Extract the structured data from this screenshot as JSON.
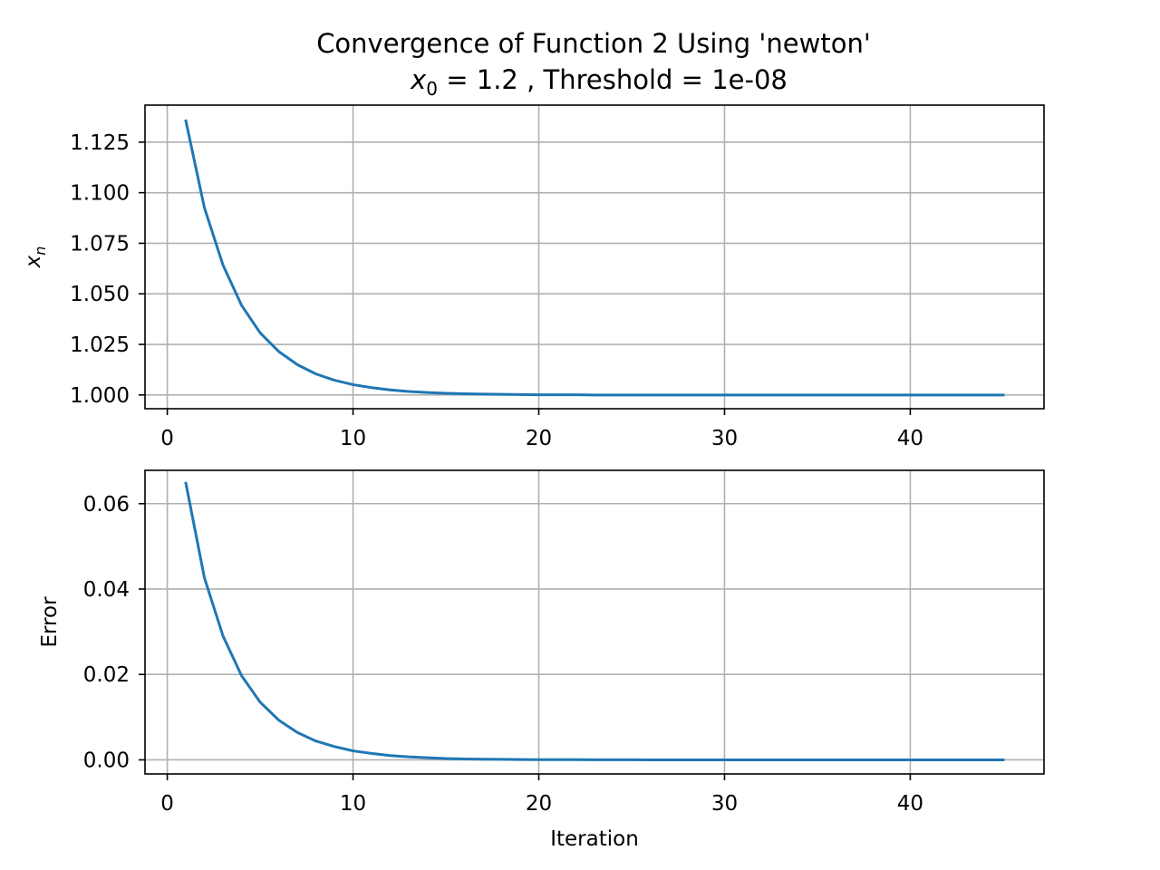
{
  "figure": {
    "title_line1": "Convergence of Function 2 Using 'newton'",
    "title_line2_x": "x",
    "title_line2_sub": "0",
    "title_line2_rest": " = 1.2 , Threshold = 1e-08"
  },
  "colors": {
    "series": "#1f77b4",
    "grid": "#b0b0b0",
    "frame": "#000000"
  },
  "chart_data": [
    {
      "type": "line",
      "title": "Convergence of Function 2 Using 'newton' x_0 = 1.2 , Threshold = 1e-08",
      "xlabel": "",
      "ylabel_main": "x",
      "ylabel_sub": "n",
      "xlim": [
        -1.2,
        47.2
      ],
      "ylim": [
        0.9932,
        1.1433
      ],
      "xticks": [
        0,
        10,
        20,
        30,
        40
      ],
      "xtick_labels": [
        "0",
        "10",
        "20",
        "30",
        "40"
      ],
      "yticks": [
        1.0,
        1.025,
        1.05,
        1.075,
        1.1,
        1.125
      ],
      "ytick_labels": [
        "1.000",
        "1.025",
        "1.050",
        "1.075",
        "1.100",
        "1.125"
      ],
      "grid": true,
      "series": [
        {
          "x": [
            1,
            2,
            3,
            4,
            5,
            6,
            7,
            8,
            9,
            10,
            11,
            12,
            13,
            14,
            15,
            16,
            17,
            18,
            19,
            20,
            21,
            22,
            23,
            24,
            25,
            26,
            27,
            28,
            29,
            30,
            31,
            32,
            33,
            34,
            35,
            36,
            37,
            38,
            39,
            40,
            41,
            42,
            43,
            44,
            45
          ],
          "values": [
            1.1355,
            1.0925,
            1.0642,
            1.0443,
            1.0307,
            1.0215,
            1.015,
            1.0104,
            1.0073,
            1.0051,
            1.0036,
            1.0025,
            1.0017,
            1.0012,
            1.0008,
            1.0006,
            1.0004,
            1.0003,
            1.0002,
            1.0001,
            1.0001,
            1.0001,
            1.0,
            1.0,
            1.0,
            1.0,
            1.0,
            1.0,
            1.0,
            1.0,
            1.0,
            1.0,
            1.0,
            1.0,
            1.0,
            1.0,
            1.0,
            1.0,
            1.0,
            1.0,
            1.0,
            1.0,
            1.0,
            1.0,
            1.0
          ]
        }
      ]
    },
    {
      "type": "line",
      "title": "",
      "xlabel": "Iteration",
      "ylabel": "Error",
      "xlim": [
        -1.2,
        47.2
      ],
      "ylim": [
        -0.0033,
        0.0678
      ],
      "xticks": [
        0,
        10,
        20,
        30,
        40
      ],
      "xtick_labels": [
        "0",
        "10",
        "20",
        "30",
        "40"
      ],
      "yticks": [
        0.0,
        0.02,
        0.04,
        0.06
      ],
      "ytick_labels": [
        "0.00",
        "0.02",
        "0.04",
        "0.06"
      ],
      "grid": true,
      "series": [
        {
          "x": [
            1,
            2,
            3,
            4,
            5,
            6,
            7,
            8,
            9,
            10,
            11,
            12,
            13,
            14,
            15,
            16,
            17,
            18,
            19,
            20,
            21,
            22,
            23,
            24,
            25,
            26,
            27,
            28,
            29,
            30,
            31,
            32,
            33,
            34,
            35,
            36,
            37,
            38,
            39,
            40,
            41,
            42,
            43,
            44,
            45
          ],
          "values": [
            0.0648,
            0.0426,
            0.029,
            0.0197,
            0.0135,
            0.0093,
            0.0064,
            0.0044,
            0.0031,
            0.0021,
            0.0015,
            0.001,
            0.0007,
            0.0005,
            0.0003,
            0.0002,
            0.00016,
            0.00011,
            8e-05,
            5e-05,
            4e-05,
            3e-05,
            2e-05,
            1e-05,
            1e-05,
            0,
            0,
            0,
            0,
            0,
            0,
            0,
            0,
            0,
            0,
            0,
            0,
            0,
            0,
            0,
            0,
            0,
            0,
            0,
            0
          ]
        }
      ]
    }
  ]
}
